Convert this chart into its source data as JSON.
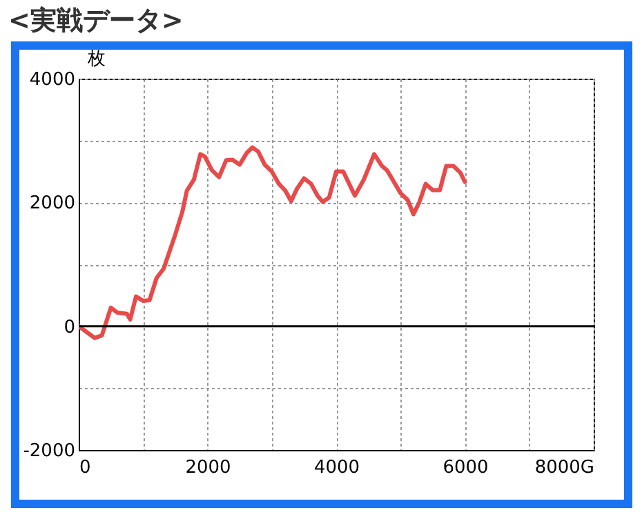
{
  "chart_data": {
    "type": "line",
    "title": "<実戦データ>",
    "ylabel": "枚",
    "x": [
      0,
      250,
      360,
      500,
      600,
      750,
      800,
      890,
      1000,
      1100,
      1210,
      1320,
      1500,
      1610,
      1680,
      1790,
      1890,
      1960,
      2070,
      2180,
      2290,
      2390,
      2500,
      2610,
      2700,
      2790,
      2890,
      3000,
      3110,
      3210,
      3300,
      3390,
      3500,
      3610,
      3710,
      3790,
      3890,
      4000,
      4110,
      4290,
      4430,
      4590,
      4710,
      4790,
      5000,
      5110,
      5200,
      5290,
      5390,
      5500,
      5610,
      5710,
      5820,
      5930,
      6000
    ],
    "series": [
      {
        "color": "#e84a4a",
        "values": [
          0,
          -190,
          -150,
          300,
          220,
          200,
          110,
          480,
          410,
          420,
          780,
          930,
          1480,
          1850,
          2190,
          2370,
          2780,
          2740,
          2520,
          2410,
          2680,
          2690,
          2610,
          2800,
          2890,
          2820,
          2610,
          2500,
          2300,
          2190,
          2020,
          2220,
          2390,
          2300,
          2110,
          2010,
          2080,
          2500,
          2500,
          2110,
          2370,
          2780,
          2590,
          2520,
          2150,
          2040,
          1810,
          2000,
          2300,
          2200,
          2200,
          2590,
          2590,
          2480,
          2330
        ]
      }
    ],
    "xlim": [
      0,
      8000
    ],
    "ylim": [
      -2000,
      4000
    ],
    "xticks": [
      0,
      {
        "value": 1000,
        "label": null
      },
      2000,
      {
        "value": 3000,
        "label": null
      },
      4000,
      {
        "value": 5000,
        "label": null
      },
      6000,
      {
        "value": 7000,
        "label": null
      },
      {
        "value": 8000,
        "label": "8000G"
      }
    ],
    "yticks": [
      -2000,
      {
        "value": -1000,
        "label": null
      },
      0,
      {
        "value": 1000,
        "label": null
      },
      2000,
      {
        "value": 3000,
        "label": null
      },
      4000
    ],
    "grid": true,
    "marker": "none",
    "line_style": "solid",
    "ref_lines": [
      {
        "axis": "y",
        "value": 0,
        "color": "#000000"
      }
    ]
  }
}
